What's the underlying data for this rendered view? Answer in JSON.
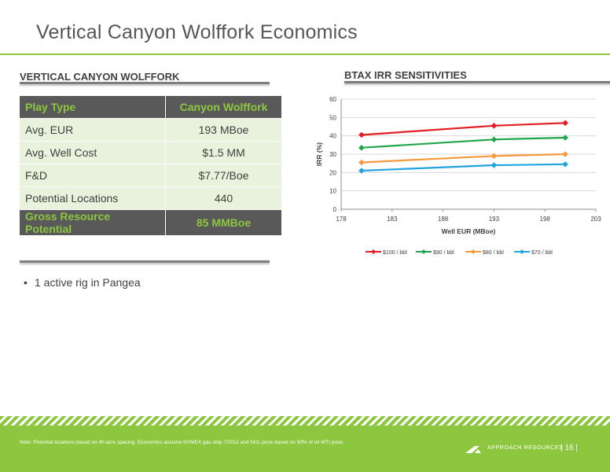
{
  "slide": {
    "title": "Vertical Canyon Wolffork Economics"
  },
  "left": {
    "heading": "VERTICAL CANYON WOLFFORK",
    "table": {
      "header": [
        "Play Type",
        "Canyon Wolffork"
      ],
      "rows": [
        [
          "Avg. EUR",
          "193 MBoe"
        ],
        [
          "Avg. Well Cost",
          "$1.5 MM"
        ],
        [
          "F&D",
          "$7.77/Boe"
        ],
        [
          "Potential Locations",
          "440"
        ]
      ],
      "footer": [
        "Gross Resource Potential",
        "85 MMBoe"
      ]
    },
    "bullets": [
      "1 active rig in Pangea"
    ]
  },
  "right": {
    "heading": "BTAX IRR SENSITIVITIES"
  },
  "chart_data": {
    "type": "line",
    "title": "",
    "xlabel": "Well EUR (MBoe)",
    "ylabel": "IRR (%)",
    "xlim": [
      178,
      203
    ],
    "ylim": [
      0,
      60
    ],
    "xticks": [
      "178",
      "183",
      "188",
      "193",
      "198",
      "203"
    ],
    "yticks": [
      "0",
      "10",
      "20",
      "30",
      "40",
      "50",
      "60"
    ],
    "grid": true,
    "legend": "bottom",
    "x": [
      180,
      193,
      200
    ],
    "series": [
      {
        "name": "$100 / bbl",
        "color": "#e31c23",
        "values": [
          40.5,
          45.5,
          47
        ]
      },
      {
        "name": "$90 / bbl",
        "color": "#1fa64a",
        "values": [
          33.5,
          38,
          39
        ]
      },
      {
        "name": "$80 / bbl",
        "color": "#f79a3e",
        "values": [
          25.5,
          29,
          30
        ]
      },
      {
        "name": "$70 / bbl",
        "color": "#20a3de",
        "values": [
          21,
          24,
          24.5
        ]
      }
    ]
  },
  "footer": {
    "note": "Note: Potential locations based on 40 acre spacing.  Economics assume NYMEX gas strip 7/2011 and NGL price based on 50% of oil WTI price.",
    "company": "APPROACH RESOURCES",
    "page": "| 16 |"
  },
  "colors": {
    "brand_green": "#8dc63f",
    "table_dark": "#595959",
    "table_light": "#e9f2dc"
  }
}
